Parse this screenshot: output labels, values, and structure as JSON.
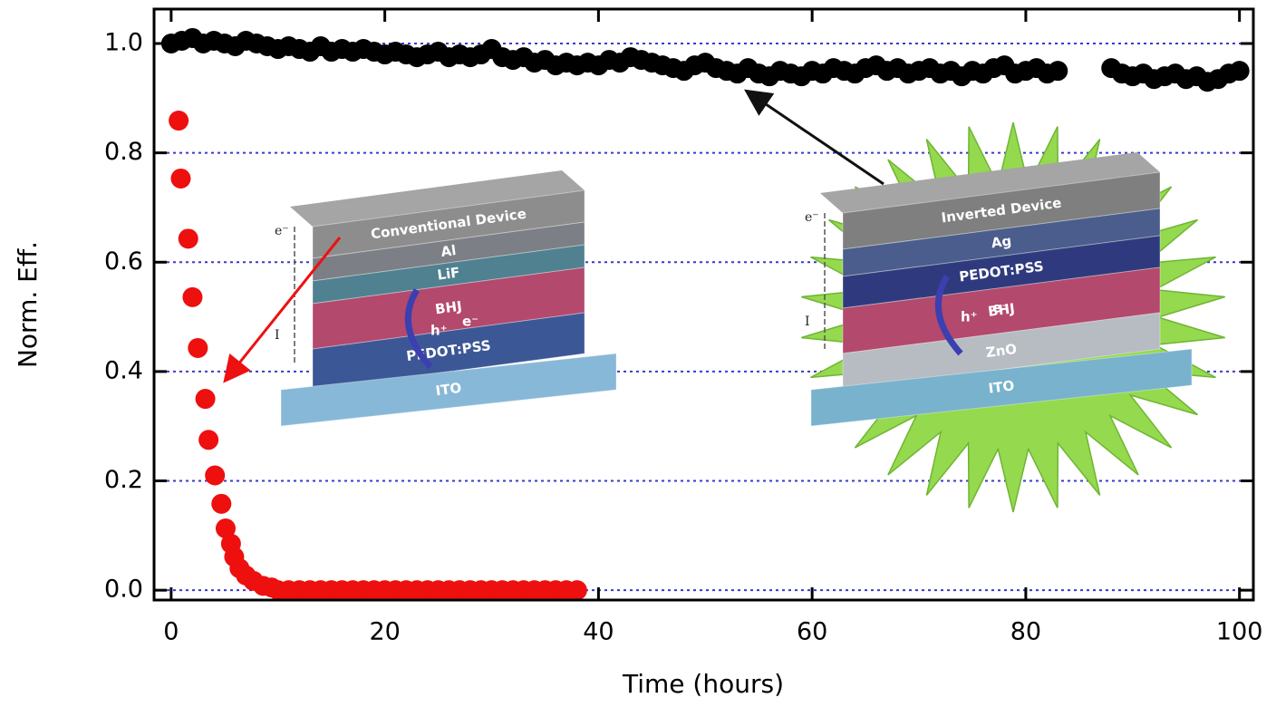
{
  "chart_data": {
    "type": "scatter",
    "x_label": "Time (hours)",
    "y_label": "Norm. Eff.",
    "xlim": [
      -1.6,
      101.3
    ],
    "ylim": [
      -0.018,
      1.063
    ],
    "xticks": [
      0,
      20,
      40,
      60,
      80,
      100
    ],
    "yticks": [
      {
        "value": 0,
        "label": "0.0"
      },
      0.2,
      0.4,
      0.6,
      0.8,
      {
        "value": 1,
        "label": "1.0"
      }
    ],
    "grid": true,
    "series": [
      {
        "color": "#ee0f0f",
        "x": [
          0.7,
          0.9,
          1.6,
          2,
          2.5,
          3.2,
          3.5,
          4.1,
          4.7,
          5.1,
          5.6,
          5.9,
          6.4,
          7,
          7.7,
          8.6,
          9.4,
          10,
          11,
          12,
          13,
          14,
          15,
          16,
          17,
          18,
          19,
          20,
          21,
          22,
          23,
          24,
          25,
          26,
          27,
          28,
          29,
          30,
          31,
          32,
          33,
          34,
          35,
          36,
          37,
          38
        ],
        "values": [
          0.859,
          0.753,
          0.643,
          0.536,
          0.443,
          0.35,
          0.275,
          0.21,
          0.158,
          0.113,
          0.085,
          0.061,
          0.04,
          0.027,
          0.017,
          0.008,
          0.005,
          0,
          0,
          0,
          0,
          0,
          0,
          0,
          0,
          0,
          0,
          0,
          0,
          0,
          0,
          0,
          0,
          0,
          0,
          0,
          0,
          0,
          0,
          0,
          0,
          0,
          0,
          0,
          0,
          0
        ]
      },
      {
        "color": "#000000",
        "x": [
          0,
          1,
          2,
          3,
          4,
          5,
          6,
          7,
          8,
          9,
          10,
          11,
          12,
          13,
          14,
          15,
          16,
          17,
          18,
          19,
          20,
          21,
          22,
          23,
          24,
          25,
          26,
          27,
          28,
          29,
          30,
          31,
          32,
          33,
          34,
          35,
          36,
          37,
          38,
          39,
          40,
          41,
          42,
          43,
          44,
          45,
          46,
          47,
          48,
          49,
          50,
          51,
          52,
          53,
          54,
          55,
          56,
          57,
          58,
          59,
          60,
          61,
          62,
          63,
          64,
          65,
          66,
          67,
          68,
          69,
          70,
          71,
          72,
          73,
          74,
          75,
          76,
          77,
          78,
          79,
          80,
          81,
          82,
          83,
          88,
          89,
          90,
          91,
          92,
          93,
          94,
          95,
          96,
          97,
          98,
          99,
          100
        ],
        "values": [
          1.0,
          1.005,
          1.01,
          1.0,
          1.005,
          1.0,
          0.995,
          1.005,
          1.0,
          0.995,
          0.99,
          0.995,
          0.99,
          0.985,
          0.995,
          0.985,
          0.99,
          0.985,
          0.99,
          0.985,
          0.98,
          0.985,
          0.98,
          0.975,
          0.98,
          0.985,
          0.975,
          0.98,
          0.975,
          0.98,
          0.99,
          0.975,
          0.97,
          0.975,
          0.965,
          0.97,
          0.96,
          0.965,
          0.96,
          0.965,
          0.96,
          0.97,
          0.965,
          0.975,
          0.97,
          0.965,
          0.96,
          0.955,
          0.95,
          0.96,
          0.965,
          0.955,
          0.95,
          0.945,
          0.955,
          0.945,
          0.94,
          0.95,
          0.945,
          0.94,
          0.95,
          0.945,
          0.955,
          0.95,
          0.945,
          0.955,
          0.96,
          0.95,
          0.955,
          0.945,
          0.95,
          0.955,
          0.945,
          0.95,
          0.94,
          0.95,
          0.945,
          0.955,
          0.96,
          0.945,
          0.95,
          0.955,
          0.945,
          0.95,
          0.955,
          0.945,
          0.94,
          0.945,
          0.935,
          0.94,
          0.945,
          0.935,
          0.94,
          0.93,
          0.935,
          0.945,
          0.95
        ]
      }
    ],
    "insets": [
      {
        "title": "Conventional Device",
        "layers": [
          "Al",
          "LiF",
          "BHJ",
          "PEDOT:PSS",
          "ITO"
        ],
        "electron": "e⁻",
        "hole": "h⁺",
        "current": "I"
      },
      {
        "title": "Inverted Device",
        "layers": [
          "Ag",
          "PEDOT:PSS",
          "BHJ",
          "ZnO",
          "ITO"
        ],
        "electron": "e⁻",
        "hole": "h⁺",
        "current": "I"
      }
    ]
  }
}
